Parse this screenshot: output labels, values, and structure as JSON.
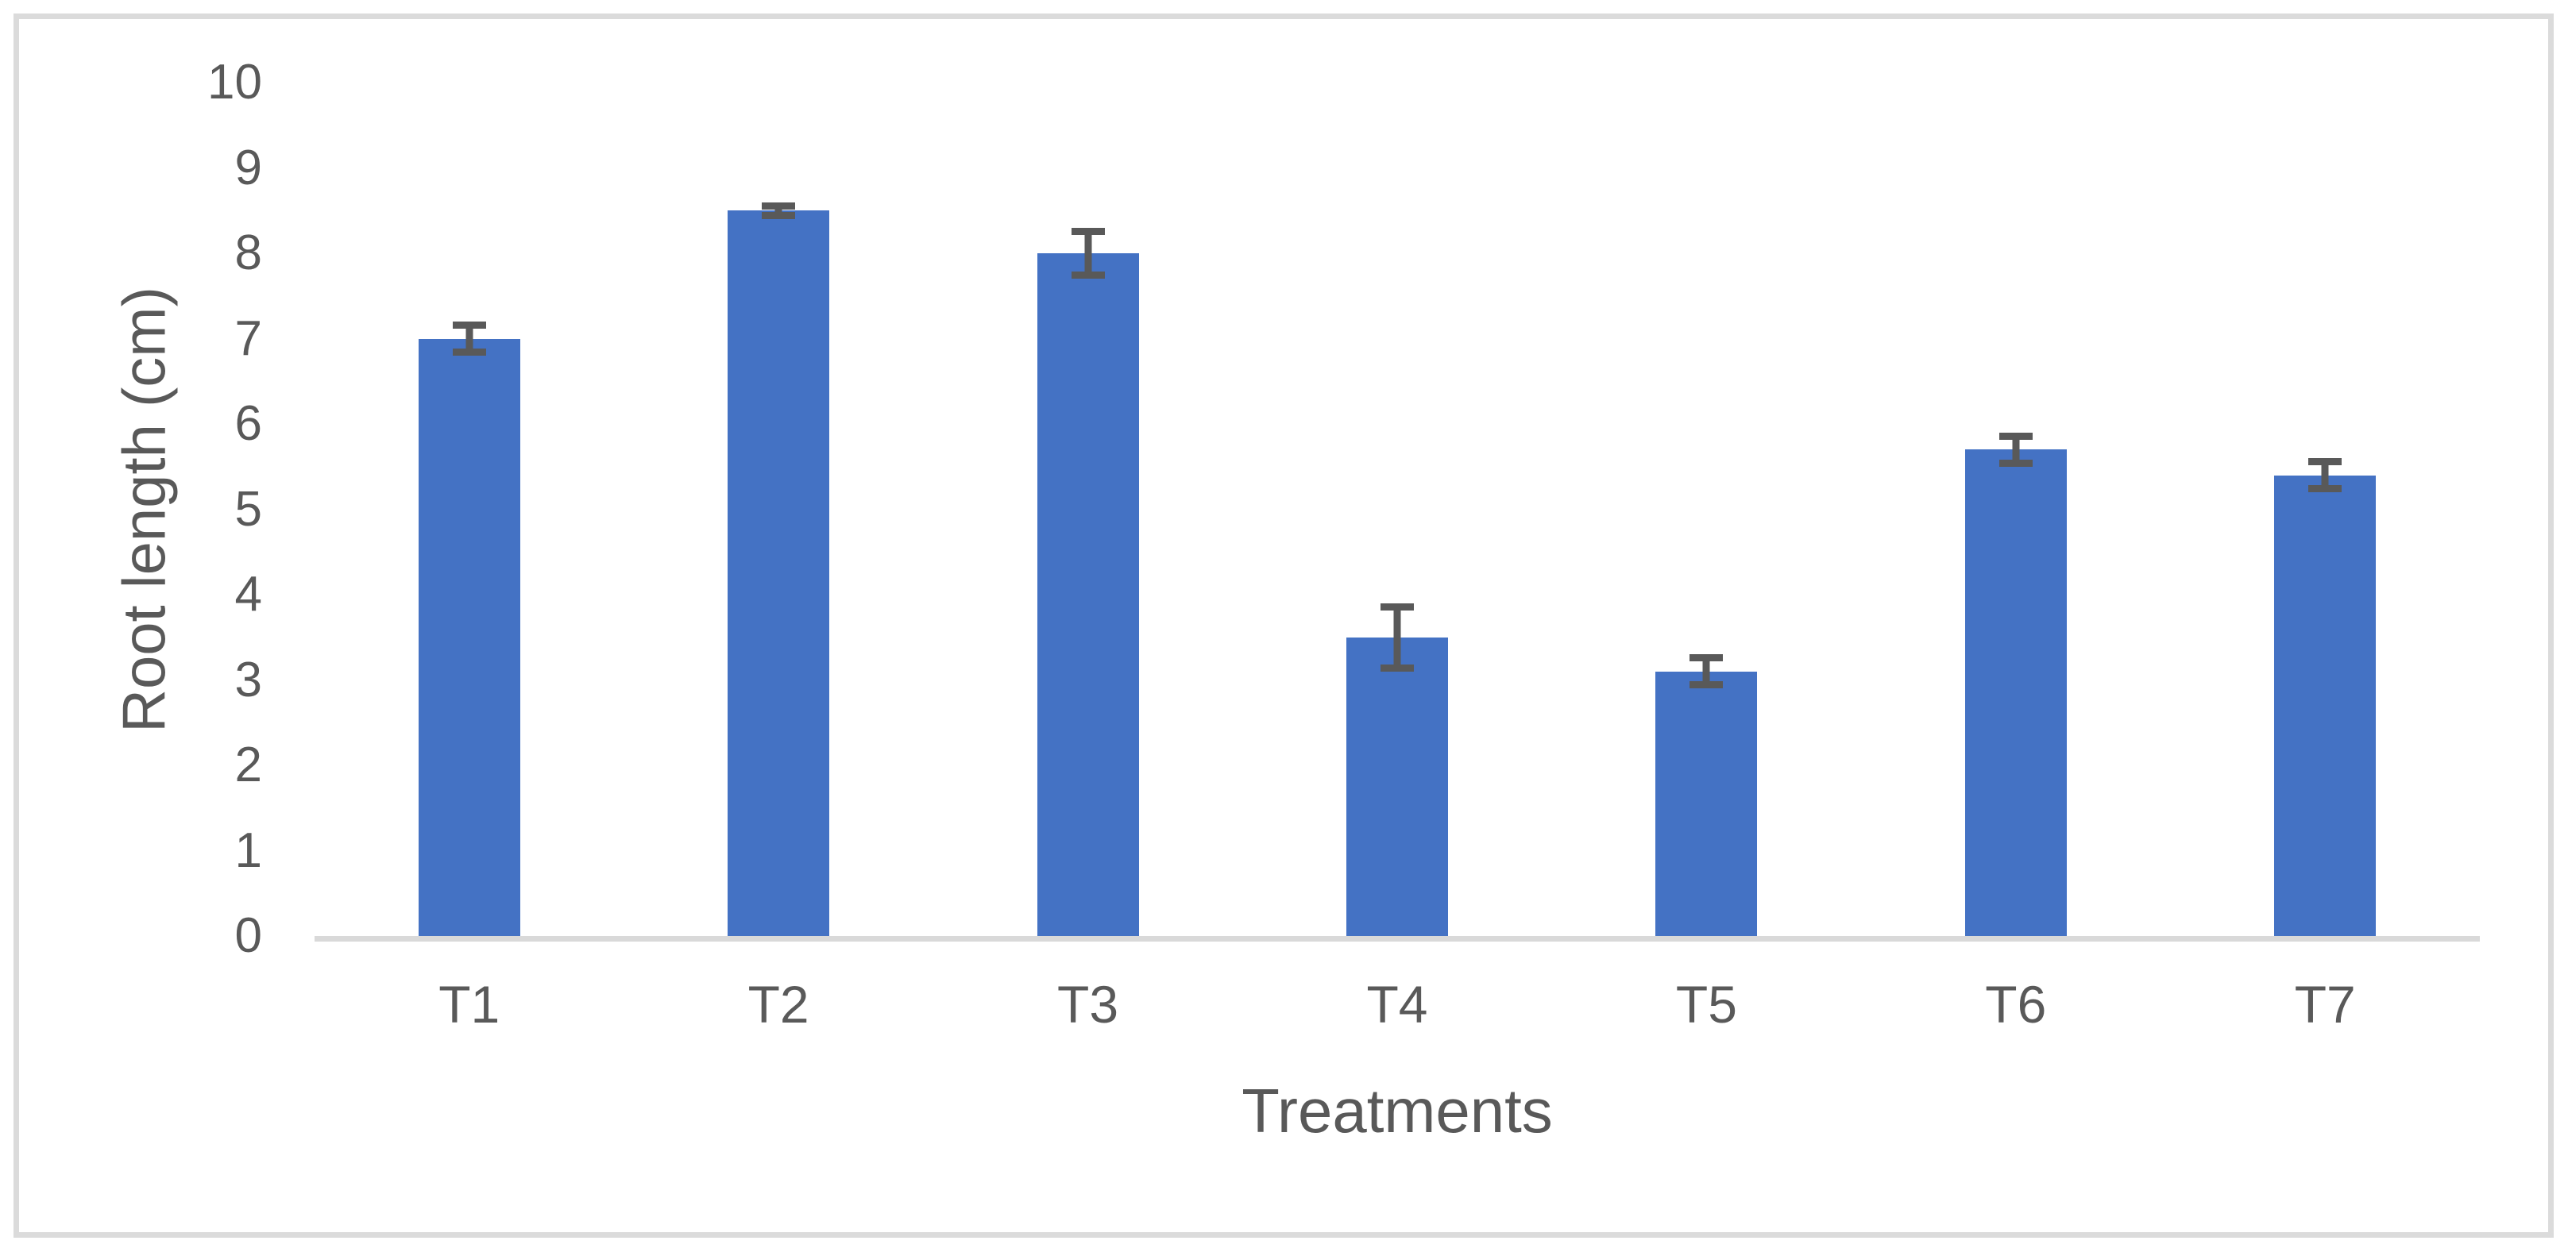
{
  "figure": {
    "background_color": "#ffffff",
    "frame_color": "#d9d9d9"
  },
  "chart_data": {
    "type": "bar",
    "title": "",
    "xlabel": "Treatments",
    "ylabel": "Root length (cm)",
    "categories": [
      "T1",
      "T2",
      "T3",
      "T4",
      "T5",
      "T6",
      "T7"
    ],
    "values": [
      7.0,
      8.5,
      8.0,
      3.5,
      3.1,
      5.7,
      5.4
    ],
    "error_bars": [
      0.2,
      0.1,
      0.3,
      0.4,
      0.2,
      0.2,
      0.2
    ],
    "ylim": [
      0,
      10
    ],
    "yticks": [
      0,
      1,
      2,
      3,
      4,
      5,
      6,
      7,
      8,
      9,
      10
    ],
    "grid": "off",
    "legend": "none",
    "bar_color": "#4472c4",
    "error_bar_color": "#595959",
    "text_color": "#595959",
    "axis_line_color": "#d9d9d9"
  }
}
